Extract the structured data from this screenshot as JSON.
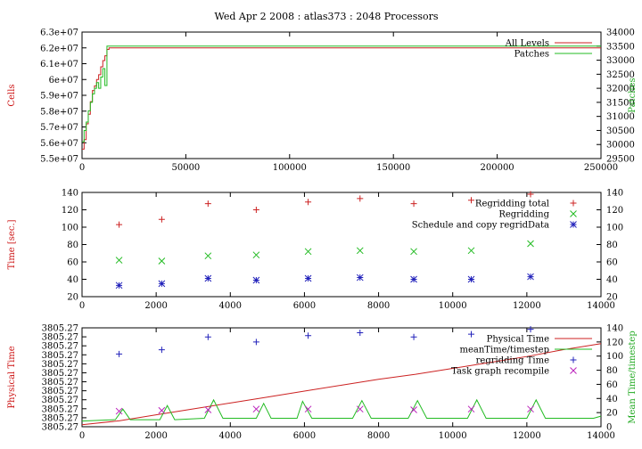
{
  "title": "Wed Apr 2 2008 : atlas373 : 2048 Processors",
  "colors": {
    "red": "#cc2222",
    "green": "#22bb22",
    "blue": "#2222bb",
    "magenta": "#bb22bb",
    "axis_label": "#cc1111",
    "axis_label_green": "#22aa22"
  },
  "chart_data": [
    {
      "type": "line",
      "ylabel": "Cells",
      "y2label": "Patches",
      "xlim": [
        0,
        250000
      ],
      "ylim": [
        55000000,
        63000000
      ],
      "y2lim": [
        29500,
        34000
      ],
      "xticks": [
        "0",
        "50000",
        "100000",
        "150000",
        "200000",
        "250000"
      ],
      "yticks": [
        "5.5e+07",
        "5.6e+07",
        "5.7e+07",
        "5.8e+07",
        "5.9e+07",
        "6e+07",
        "6.1e+07",
        "6.2e+07",
        "6.3e+07"
      ],
      "y2ticks": [
        "29500",
        "30000",
        "30500",
        "31000",
        "31500",
        "32000",
        "32500",
        "33000",
        "33500",
        "34000"
      ],
      "legend_position": "top-right",
      "series": [
        {
          "name": "All Levels",
          "color": "#cc2222",
          "axis": "left",
          "x": [
            0,
            1000,
            2000,
            3000,
            4000,
            5000,
            6000,
            7000,
            8000,
            9000,
            10000,
            11000,
            12000,
            13000,
            250000
          ],
          "y": [
            55600000,
            56200000,
            57200000,
            57800000,
            58600000,
            59300000,
            59600000,
            60000000,
            60300000,
            60800000,
            61200000,
            61500000,
            61900000,
            62000000,
            62000000
          ]
        },
        {
          "name": "Patches",
          "color": "#22bb22",
          "axis": "right",
          "x": [
            0,
            1000,
            2000,
            3000,
            4000,
            5000,
            6000,
            7000,
            8000,
            9000,
            10000,
            11000,
            12000,
            13000,
            250000
          ],
          "y": [
            30100,
            30500,
            30800,
            31200,
            31500,
            31800,
            32000,
            32200,
            32000,
            32400,
            32700,
            32100,
            33500,
            33500,
            33500
          ]
        }
      ]
    },
    {
      "type": "scatter",
      "ylabel": "Time [sec.]",
      "xlim": [
        0,
        14000
      ],
      "ylim": [
        20,
        140
      ],
      "y2lim": [
        20,
        140
      ],
      "xticks": [
        "0",
        "2000",
        "4000",
        "6000",
        "8000",
        "10000",
        "12000",
        "14000"
      ],
      "yticks": [
        "20",
        "40",
        "60",
        "80",
        "100",
        "120",
        "140"
      ],
      "y2ticks": [
        "20",
        "40",
        "60",
        "80",
        "100",
        "120",
        "140"
      ],
      "legend_position": "top-right",
      "series": [
        {
          "name": "Regridding total",
          "color": "#cc2222",
          "marker": "plus",
          "x": [
            1000,
            2150,
            3400,
            4700,
            6100,
            7500,
            8950,
            10500,
            12100
          ],
          "y": [
            103,
            109,
            127,
            120,
            129,
            133,
            127,
            131,
            138
          ]
        },
        {
          "name": "Regridding",
          "color": "#22bb22",
          "marker": "cross",
          "x": [
            1000,
            2150,
            3400,
            4700,
            6100,
            7500,
            8950,
            10500,
            12100
          ],
          "y": [
            62,
            61,
            67,
            68,
            72,
            73,
            72,
            73,
            81
          ]
        },
        {
          "name": "Schedule and copy regridData",
          "color": "#2222bb",
          "marker": "star",
          "x": [
            1000,
            2150,
            3400,
            4700,
            6100,
            7500,
            8950,
            10500,
            12100
          ],
          "y": [
            33,
            35,
            41,
            39,
            41,
            42,
            40,
            40,
            43
          ]
        }
      ]
    },
    {
      "type": "line",
      "ylabel": "Physical Time",
      "y2label": "Mean Time/timestep",
      "xlim": [
        0,
        14000
      ],
      "ylim": [
        0,
        1
      ],
      "y2lim": [
        0,
        140
      ],
      "xticks": [
        "0",
        "2000",
        "4000",
        "6000",
        "8000",
        "10000",
        "12000",
        "14000"
      ],
      "yticks": [
        "3805.27",
        "3805.27",
        "3805.27",
        "3805.27",
        "3805.27",
        "3805.27",
        "3805.27",
        "3805.27",
        "3805.27",
        "3805.27",
        "3805.27",
        "3805.27"
      ],
      "y2ticks": [
        "0",
        "20",
        "40",
        "60",
        "80",
        "100",
        "120",
        "140"
      ],
      "legend_position": "top-right",
      "series": [
        {
          "name": "Physical Time",
          "color": "#cc2222",
          "axis": "left",
          "x": [
            0,
            1000,
            2000,
            3000,
            4000,
            5000,
            6000,
            7000,
            8000,
            9000,
            10000,
            11000,
            12000,
            13000,
            14000
          ],
          "y": [
            0.02,
            0.06,
            0.12,
            0.18,
            0.24,
            0.3,
            0.36,
            0.42,
            0.48,
            0.53,
            0.59,
            0.65,
            0.71,
            0.78,
            0.84
          ]
        },
        {
          "name": "meanTime/timestep",
          "color": "#22bb22",
          "axis": "right",
          "x": [
            0,
            900,
            1100,
            1300,
            2100,
            2300,
            2500,
            3300,
            3550,
            3800,
            4700,
            4900,
            5100,
            5800,
            5950,
            6200,
            7300,
            7550,
            7800,
            8800,
            9050,
            9300,
            10400,
            10650,
            10900,
            12000,
            12250,
            12500,
            13800,
            14000
          ],
          "y": [
            8,
            10,
            25,
            10,
            10,
            30,
            10,
            12,
            38,
            12,
            12,
            33,
            12,
            12,
            36,
            12,
            12,
            37,
            12,
            12,
            37,
            12,
            12,
            38,
            12,
            12,
            38,
            12,
            12,
            15
          ]
        },
        {
          "name": "regridding Time",
          "color": "#2222bb",
          "axis": "right",
          "marker": "plus",
          "x": [
            1000,
            2150,
            3400,
            4700,
            6100,
            7500,
            8950,
            10500,
            12100
          ],
          "y": [
            103,
            109,
            127,
            120,
            129,
            133,
            127,
            131,
            138
          ]
        },
        {
          "name": "Task graph recompile",
          "color": "#bb22bb",
          "axis": "right",
          "marker": "cross",
          "x": [
            1000,
            2150,
            3400,
            4700,
            6100,
            7500,
            8950,
            10500,
            12100
          ],
          "y": [
            22,
            23,
            24,
            25,
            25,
            25,
            24,
            25,
            25
          ]
        }
      ]
    }
  ]
}
